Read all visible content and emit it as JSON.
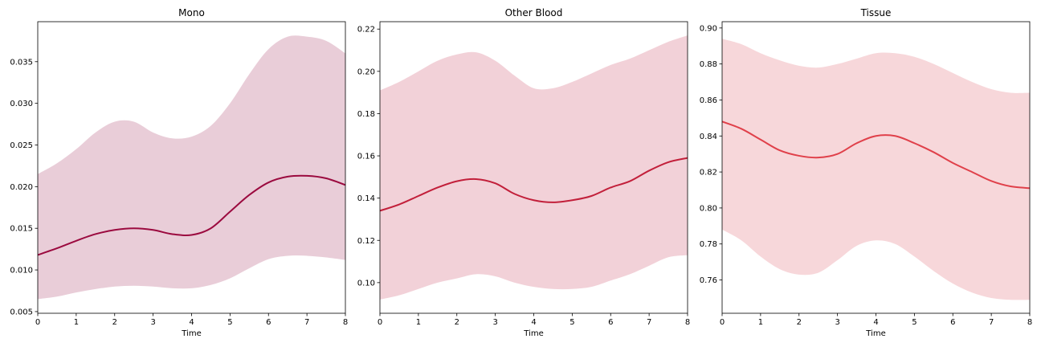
{
  "chart_data": [
    {
      "type": "line",
      "title": "Mono",
      "xlabel": "Time",
      "ylabel": "",
      "xlim": [
        0,
        8
      ],
      "ylim": [
        0.0048,
        0.0398
      ],
      "xticks": [
        0,
        1,
        2,
        3,
        4,
        5,
        6,
        7,
        8
      ],
      "yticks": [
        0.005,
        0.01,
        0.015,
        0.02,
        0.025,
        0.03,
        0.035
      ],
      "ytick_labels": [
        "0.005",
        "0.010",
        "0.015",
        "0.020",
        "0.025",
        "0.030",
        "0.035"
      ],
      "line_color": "#9b0a3f",
      "band_color": "#e9cdd8",
      "x": [
        0,
        0.5,
        1,
        1.5,
        2,
        2.5,
        3,
        3.5,
        4,
        4.5,
        5,
        5.5,
        6,
        6.5,
        7,
        7.5,
        8
      ],
      "series": [
        {
          "mean": [
            0.0118,
            0.0126,
            0.0135,
            0.0143,
            0.0148,
            0.015,
            0.0148,
            0.0143,
            0.0142,
            0.015,
            0.017,
            0.019,
            0.0205,
            0.0212,
            0.0213,
            0.021,
            0.0202
          ],
          "upper": [
            0.0215,
            0.0228,
            0.0245,
            0.0265,
            0.0278,
            0.0278,
            0.0265,
            0.0258,
            0.026,
            0.0273,
            0.03,
            0.0335,
            0.0365,
            0.038,
            0.038,
            0.0375,
            0.036
          ],
          "lower": [
            0.0065,
            0.0068,
            0.0073,
            0.0077,
            0.008,
            0.0081,
            0.008,
            0.0078,
            0.0078,
            0.0082,
            0.009,
            0.0102,
            0.0113,
            0.0117,
            0.0117,
            0.0115,
            0.0112
          ]
        }
      ]
    },
    {
      "type": "line",
      "title": "Other Blood",
      "xlabel": "Time",
      "ylabel": "",
      "xlim": [
        0,
        8
      ],
      "ylim": [
        0.0855,
        0.2235
      ],
      "xticks": [
        0,
        1,
        2,
        3,
        4,
        5,
        6,
        7,
        8
      ],
      "yticks": [
        0.1,
        0.12,
        0.14,
        0.16,
        0.18,
        0.2,
        0.22
      ],
      "ytick_labels": [
        "0.10",
        "0.12",
        "0.14",
        "0.16",
        "0.18",
        "0.20",
        "0.22"
      ],
      "line_color": "#c21f3a",
      "band_color": "#f2d1d8",
      "x": [
        0,
        0.5,
        1,
        1.5,
        2,
        2.5,
        3,
        3.5,
        4,
        4.5,
        5,
        5.5,
        6,
        6.5,
        7,
        7.5,
        8
      ],
      "series": [
        {
          "mean": [
            0.134,
            0.137,
            0.141,
            0.145,
            0.148,
            0.149,
            0.147,
            0.142,
            0.139,
            0.138,
            0.139,
            0.141,
            0.145,
            0.148,
            0.153,
            0.157,
            0.159
          ],
          "upper": [
            0.191,
            0.195,
            0.2,
            0.205,
            0.208,
            0.209,
            0.205,
            0.198,
            0.192,
            0.192,
            0.195,
            0.199,
            0.203,
            0.206,
            0.21,
            0.214,
            0.217
          ],
          "lower": [
            0.092,
            0.094,
            0.097,
            0.1,
            0.102,
            0.104,
            0.103,
            0.1,
            0.098,
            0.097,
            0.097,
            0.098,
            0.101,
            0.104,
            0.108,
            0.112,
            0.113
          ]
        }
      ]
    },
    {
      "type": "line",
      "title": "Tissue",
      "xlabel": "Time",
      "ylabel": "",
      "xlim": [
        0,
        8
      ],
      "ylim": [
        0.7415,
        0.9035
      ],
      "xticks": [
        0,
        1,
        2,
        3,
        4,
        5,
        6,
        7,
        8
      ],
      "yticks": [
        0.76,
        0.78,
        0.8,
        0.82,
        0.84,
        0.86,
        0.88,
        0.9
      ],
      "ytick_labels": [
        "0.76",
        "0.78",
        "0.80",
        "0.82",
        "0.84",
        "0.86",
        "0.88",
        "0.90"
      ],
      "line_color": "#e0404a",
      "band_color": "#f7d7da",
      "x": [
        0,
        0.5,
        1,
        1.5,
        2,
        2.5,
        3,
        3.5,
        4,
        4.5,
        5,
        5.5,
        6,
        6.5,
        7,
        7.5,
        8
      ],
      "series": [
        {
          "mean": [
            0.848,
            0.844,
            0.838,
            0.832,
            0.829,
            0.828,
            0.83,
            0.836,
            0.84,
            0.84,
            0.836,
            0.831,
            0.825,
            0.82,
            0.815,
            0.812,
            0.811
          ],
          "upper": [
            0.894,
            0.891,
            0.886,
            0.882,
            0.879,
            0.878,
            0.88,
            0.883,
            0.886,
            0.886,
            0.884,
            0.88,
            0.875,
            0.87,
            0.866,
            0.864,
            0.864
          ],
          "lower": [
            0.788,
            0.782,
            0.773,
            0.766,
            0.763,
            0.764,
            0.771,
            0.779,
            0.782,
            0.78,
            0.773,
            0.765,
            0.758,
            0.753,
            0.75,
            0.749,
            0.749
          ]
        }
      ]
    }
  ]
}
